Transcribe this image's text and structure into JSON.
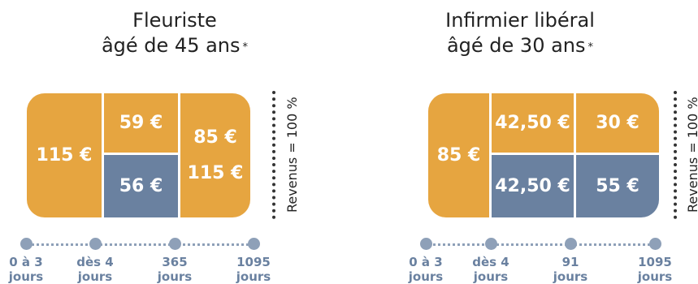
{
  "panels": [
    {
      "title_line1": "Fleuriste",
      "title_line2": "âgé de 45 ans",
      "asterisk": "*",
      "cells": {
        "left": "115 €",
        "top_middle": "59 €",
        "bottom_middle": "56 €",
        "right_top": "85 €",
        "right_bottom": "115 €"
      },
      "revenue_label": "Revenus = 100 %",
      "timeline": [
        {
          "line1": "0 à 3",
          "line2": "jours"
        },
        {
          "line1": "dès 4",
          "line2": "jours"
        },
        {
          "line1": "365",
          "line2": "jours"
        },
        {
          "line1": "1095",
          "line2": "jours"
        }
      ]
    },
    {
      "title_line1": "Infirmier libéral",
      "title_line2": "âgé de 30 ans",
      "asterisk": "*",
      "cells": {
        "left": "85 €",
        "top_middle": "42,50 €",
        "bottom_middle": "42,50 €",
        "top_right": "30 €",
        "bottom_right": "55 €"
      },
      "revenue_label": "Revenus = 100 %",
      "timeline": [
        {
          "line1": "0 à 3",
          "line2": "jours"
        },
        {
          "line1": "dès 4",
          "line2": "jours"
        },
        {
          "line1": "91",
          "line2": "jours"
        },
        {
          "line1": "1095",
          "line2": "jours"
        }
      ]
    }
  ],
  "colors": {
    "employer": "#e6a540",
    "insurance": "#6a81a0",
    "timeline": "#8ea0b8"
  }
}
